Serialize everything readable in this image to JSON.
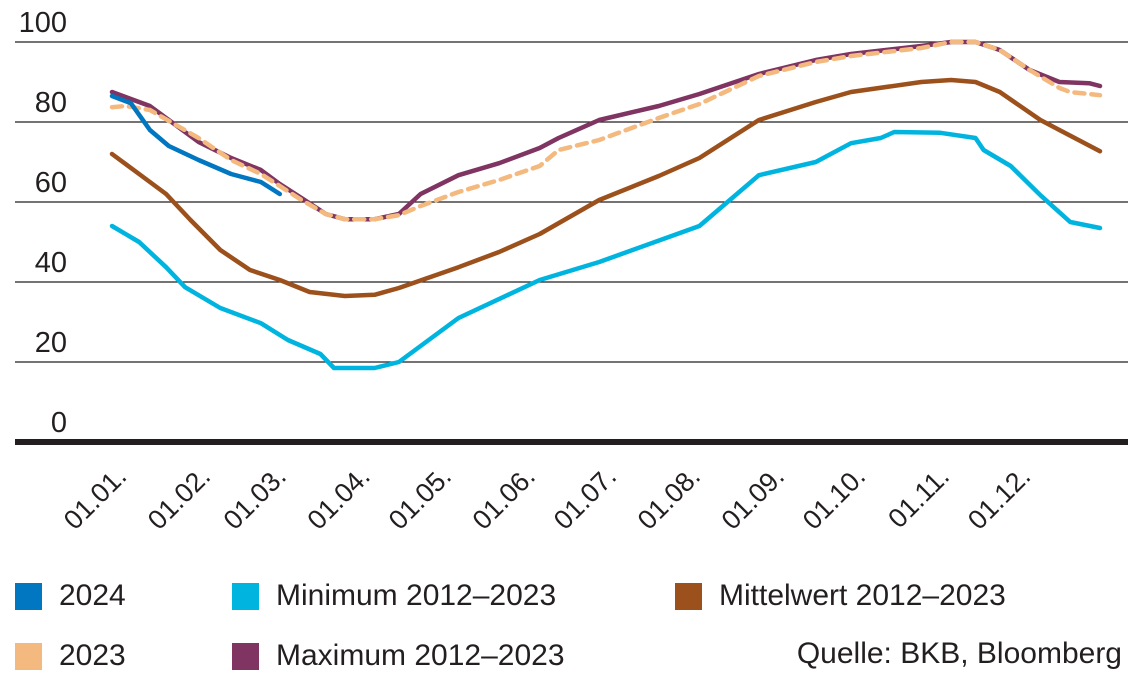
{
  "chart_data": {
    "type": "line",
    "title": "",
    "xlabel": "",
    "ylabel": "",
    "ylim": [
      0,
      100
    ],
    "yticks": [
      0,
      20,
      40,
      60,
      80,
      100
    ],
    "ytick_labels": [
      "0",
      "20",
      "40",
      "60",
      "80",
      "100"
    ],
    "x_unit": "day of year",
    "xlim": [
      0,
      365
    ],
    "xticks": [
      0,
      31,
      59,
      90,
      120,
      151,
      181,
      212,
      243,
      273,
      304,
      334
    ],
    "xtick_labels": [
      "01.01.",
      "01.02.",
      "01.03.",
      "01.04.",
      "01.05.",
      "01.06.",
      "01.07.",
      "01.08.",
      "01.09.",
      "01.10.",
      "01.11.",
      "01.12."
    ],
    "grid": "horizontal",
    "series": [
      {
        "key": "min",
        "name": "Minimum 2012–2023",
        "color": "#00b4e0",
        "dashed": false,
        "points": [
          [
            0,
            54
          ],
          [
            10,
            50
          ],
          [
            20,
            43.7
          ],
          [
            27,
            38.7
          ],
          [
            40,
            33.5
          ],
          [
            55,
            29.7
          ],
          [
            65,
            25.5
          ],
          [
            77,
            22
          ],
          [
            82,
            18.5
          ],
          [
            97,
            18.5
          ],
          [
            106,
            20
          ],
          [
            128,
            31
          ],
          [
            158,
            40.5
          ],
          [
            180,
            45
          ],
          [
            217,
            54
          ],
          [
            239,
            66.7
          ],
          [
            260,
            70
          ],
          [
            273,
            74.7
          ],
          [
            284,
            76
          ],
          [
            289,
            77.5
          ],
          [
            306,
            77.3
          ],
          [
            319,
            76
          ],
          [
            322,
            73
          ],
          [
            332,
            69
          ],
          [
            343,
            61.7
          ],
          [
            354,
            55
          ],
          [
            365,
            53.5
          ]
        ]
      },
      {
        "key": "mean",
        "name": "Mittelwert 2012–2023",
        "color": "#9c511c",
        "dashed": false,
        "points": [
          [
            0,
            72
          ],
          [
            10,
            67
          ],
          [
            20,
            62
          ],
          [
            29,
            55.5
          ],
          [
            40,
            48
          ],
          [
            51,
            43
          ],
          [
            62,
            40.5
          ],
          [
            73,
            37.5
          ],
          [
            86,
            36.5
          ],
          [
            97,
            36.8
          ],
          [
            106,
            38.5
          ],
          [
            128,
            43.7
          ],
          [
            143,
            47.5
          ],
          [
            158,
            52
          ],
          [
            180,
            60.5
          ],
          [
            202,
            66.5
          ],
          [
            217,
            71
          ],
          [
            239,
            80.5
          ],
          [
            260,
            85
          ],
          [
            273,
            87.5
          ],
          [
            299,
            90
          ],
          [
            310,
            90.5
          ],
          [
            319,
            90
          ],
          [
            328,
            87.5
          ],
          [
            343,
            80.5
          ],
          [
            350,
            78
          ],
          [
            365,
            72.7
          ]
        ]
      },
      {
        "key": "max",
        "name": "Maximum 2012–2023",
        "color": "#7f3461",
        "dashed": false,
        "points": [
          [
            0,
            87.5
          ],
          [
            14,
            84
          ],
          [
            32,
            75
          ],
          [
            44,
            71
          ],
          [
            55,
            68
          ],
          [
            62,
            64.5
          ],
          [
            70,
            61
          ],
          [
            79,
            57
          ],
          [
            86,
            55.7
          ],
          [
            97,
            55.7
          ],
          [
            106,
            57
          ],
          [
            114,
            62
          ],
          [
            128,
            66.7
          ],
          [
            143,
            69.7
          ],
          [
            158,
            73.5
          ],
          [
            165,
            76
          ],
          [
            180,
            80.5
          ],
          [
            202,
            84
          ],
          [
            217,
            87
          ],
          [
            239,
            92
          ],
          [
            260,
            95.5
          ],
          [
            273,
            97
          ],
          [
            299,
            99
          ],
          [
            310,
            100
          ],
          [
            319,
            100
          ],
          [
            328,
            98
          ],
          [
            339,
            93
          ],
          [
            350,
            90
          ],
          [
            361,
            89.7
          ],
          [
            365,
            89
          ]
        ]
      },
      {
        "key": "y2023",
        "name": "2023",
        "color": "#f4b97f",
        "dashed": true,
        "points": [
          [
            0,
            83.7
          ],
          [
            5,
            84
          ],
          [
            14,
            83
          ],
          [
            32,
            76
          ],
          [
            44,
            70.5
          ],
          [
            55,
            67
          ],
          [
            62,
            64
          ],
          [
            70,
            60.5
          ],
          [
            79,
            57
          ],
          [
            86,
            55.7
          ],
          [
            97,
            55.7
          ],
          [
            106,
            56.7
          ],
          [
            114,
            59
          ],
          [
            128,
            62.5
          ],
          [
            143,
            65.5
          ],
          [
            158,
            69
          ],
          [
            165,
            73
          ],
          [
            180,
            75.5
          ],
          [
            202,
            81
          ],
          [
            217,
            84.5
          ],
          [
            239,
            91.5
          ],
          [
            260,
            95
          ],
          [
            273,
            96.5
          ],
          [
            299,
            98.5
          ],
          [
            310,
            100
          ],
          [
            319,
            100
          ],
          [
            328,
            98
          ],
          [
            339,
            93
          ],
          [
            350,
            88.5
          ],
          [
            354,
            87.5
          ],
          [
            365,
            86.7
          ]
        ]
      },
      {
        "key": "y2024",
        "name": "2024",
        "color": "#0077c0",
        "dashed": false,
        "points": [
          [
            0,
            86.5
          ],
          [
            7,
            84.7
          ],
          [
            14,
            78
          ],
          [
            21,
            74
          ],
          [
            32,
            70.5
          ],
          [
            44,
            67
          ],
          [
            55,
            65
          ],
          [
            62,
            62
          ]
        ]
      }
    ],
    "legend": {
      "placement": "bottom",
      "order": [
        "y2024",
        "min",
        "mean",
        "y2023",
        "max"
      ]
    },
    "source": "Quelle: BKB, Bloomberg"
  },
  "legend_items": [
    {
      "label": "2024",
      "color": "#0077c0"
    },
    {
      "label": "Minimum 2012–2023",
      "color": "#00b4e0"
    },
    {
      "label": "Mittelwert 2012–2023",
      "color": "#9c511c"
    },
    {
      "label": "2023",
      "color": "#f4b97f"
    },
    {
      "label": "Maximum 2012–2023",
      "color": "#7f3461"
    }
  ],
  "source_text": "Quelle: BKB, Bloomberg"
}
